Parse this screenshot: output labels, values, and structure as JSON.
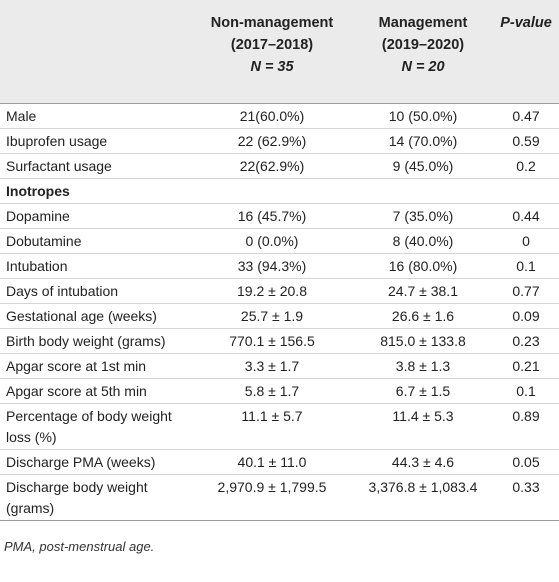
{
  "header": {
    "col1": {
      "line1": "Non-management",
      "line2": "(2017–2018)",
      "n": "N = 35"
    },
    "col2": {
      "line1": "Management",
      "line2": "(2019–2020)",
      "n": "N = 20"
    },
    "col3": {
      "label": "P-value"
    }
  },
  "rows": [
    {
      "label": "Male",
      "v1": "21(60.0%)",
      "v2": "10 (50.0%)",
      "p": "0.47"
    },
    {
      "label": "Ibuprofen usage",
      "v1": "22 (62.9%)",
      "v2": "14 (70.0%)",
      "p": "0.59"
    },
    {
      "label": "Surfactant usage",
      "v1": "22(62.9%)",
      "v2": "9 (45.0%)",
      "p": "0.2"
    },
    {
      "label": "Inotropes",
      "v1": "",
      "v2": "",
      "p": ""
    },
    {
      "label": "Dopamine",
      "v1": "16 (45.7%)",
      "v2": "7 (35.0%)",
      "p": "0.44"
    },
    {
      "label": "Dobutamine",
      "v1": "0 (0.0%)",
      "v2": "8 (40.0%)",
      "p": "0"
    },
    {
      "label": "Intubation",
      "v1": "33 (94.3%)",
      "v2": "16 (80.0%)",
      "p": "0.1"
    },
    {
      "label": "Days of intubation",
      "v1": "19.2 ± 20.8",
      "v2": "24.7 ± 38.1",
      "p": "0.77"
    },
    {
      "label": "Gestational age (weeks)",
      "v1": "25.7 ± 1.9",
      "v2": "26.6 ± 1.6",
      "p": "0.09"
    },
    {
      "label": "Birth body weight (grams)",
      "v1": "770.1 ± 156.5",
      "v2": "815.0 ± 133.8",
      "p": "0.23"
    },
    {
      "label": "Apgar score at 1st min",
      "v1": "3.3 ± 1.7",
      "v2": "3.8 ± 1.3",
      "p": "0.21"
    },
    {
      "label": "Apgar score at 5th min",
      "v1": "5.8 ± 1.7",
      "v2": "6.7 ± 1.5",
      "p": "0.1"
    },
    {
      "label": "Percentage of body weight loss (%)",
      "v1": "11.1 ± 5.7",
      "v2": "11.4 ± 5.3",
      "p": "0.89"
    },
    {
      "label": "Discharge PMA (weeks)",
      "v1": "40.1 ± 11.0",
      "v2": "44.3 ± 4.6",
      "p": "0.05"
    },
    {
      "label": "Discharge body weight (grams)",
      "v1": "2,970.9 ± 1,799.5",
      "v2": "3,376.8 ± 1,083.4",
      "p": "0.33"
    }
  ],
  "footnote": "PMA, post-menstrual age."
}
